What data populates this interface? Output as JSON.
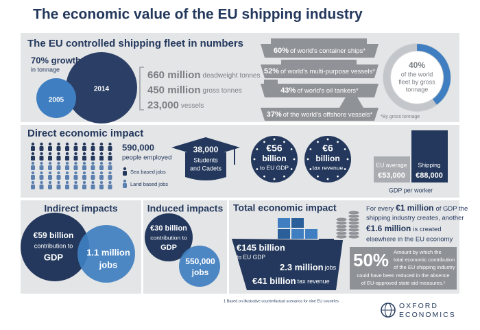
{
  "title": "The economic value of the EU shipping industry",
  "fleet": {
    "heading": "The EU controlled shipping fleet in numbers",
    "growth": "70% growth",
    "growth_note": "in tonnage",
    "year_old": "2005",
    "year_new": "2014",
    "stats": [
      {
        "value": "660 million",
        "label": "deadweight tonnes"
      },
      {
        "value": "450 million",
        "label": "gross tonnes"
      },
      {
        "value": "23,000",
        "label": "vessels"
      }
    ],
    "ships": [
      {
        "share": "60%",
        "label": "of world's container ships*"
      },
      {
        "share": "52%",
        "label": "of world's multi-purpose vessels*"
      },
      {
        "share": "43%",
        "label": "of world's oil tankers*"
      },
      {
        "share": "37%",
        "label": "of the world's offshore vessels*"
      }
    ],
    "world_share": "40%",
    "world_share_lines": [
      "of the world",
      "fleet by gross",
      "tonnage"
    ],
    "footnote": "*By gross tonnage"
  },
  "direct": {
    "heading": "Direct economic impact",
    "employed": "590,000",
    "employed_label": "people employed",
    "legend": [
      "Sea based jobs",
      "Land based jobs"
    ],
    "students": "38,000",
    "students_lines": [
      "Students",
      "and Cadets"
    ],
    "gdp": {
      "value": "€56",
      "unit": "billion",
      "label": "to EU GDP"
    },
    "tax": {
      "value": "€6",
      "unit": "billion",
      "label": "tax revenue"
    },
    "per_worker": [
      {
        "label": "EU average",
        "value": "€53,000"
      },
      {
        "label": "Shipping",
        "value": "€88,000"
      }
    ],
    "per_worker_caption": "GDP per worker"
  },
  "indirect": {
    "heading": "Indirect impacts",
    "gdp": "€59 billion",
    "gdp_label": "contribution to",
    "gdp_unit": "GDP",
    "jobs": "1.1 million",
    "jobs_unit": "jobs"
  },
  "induced": {
    "heading": "Induced impacts",
    "gdp": "€30 billion",
    "gdp_label": "contribution to",
    "gdp_unit": "GDP",
    "jobs": "550,000",
    "jobs_unit": "jobs"
  },
  "total": {
    "heading": "Total economic impact",
    "gdp": "€145 billion",
    "gdp_label": "to EU GDP",
    "jobs": "2.3 million",
    "jobs_label": "jobs",
    "tax": "€41 billion",
    "tax_label": "tax revenue",
    "multiplier": [
      "For every",
      "€1 million",
      "of GDP the",
      "shipping industry creates, another",
      "€1.6 million",
      "is created",
      "elsewhere in the EU economy"
    ],
    "state_aid": "50%",
    "state_aid_lines": [
      "Amount by which the",
      "total economic contribution",
      "of the EU shipping industry",
      "could have been reduced in the absence",
      "of EU-approved state aid measures.¹"
    ]
  },
  "footnote": "1 Based on illustrative counterfactual scenarios for nine EU countries",
  "logo": [
    "OXFORD",
    "ECONOMICS"
  ]
}
